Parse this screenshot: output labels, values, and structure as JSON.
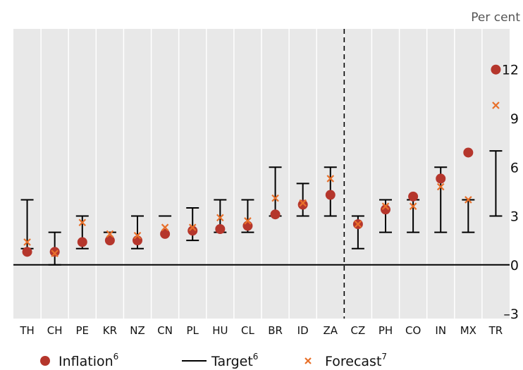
{
  "chart_data": {
    "type": "scatter",
    "unit_label": "Per cent",
    "categories": [
      "TH",
      "CH",
      "PE",
      "KR",
      "NZ",
      "CN",
      "PL",
      "HU",
      "CL",
      "BR",
      "ID",
      "ZA",
      "CZ",
      "PH",
      "CO",
      "IN",
      "MX",
      "TR"
    ],
    "series": [
      {
        "name": "Inflation",
        "footnote": "6",
        "marker": "circle",
        "color": "#b5362c",
        "values": [
          0.8,
          0.8,
          1.4,
          1.5,
          1.5,
          1.9,
          2.1,
          2.2,
          2.4,
          3.1,
          3.7,
          4.3,
          2.5,
          3.4,
          4.2,
          5.3,
          6.9,
          12.0
        ]
      },
      {
        "name": "Target",
        "footnote": "6",
        "marker": "range",
        "color": "#000000",
        "ranges": [
          [
            1,
            4
          ],
          [
            0,
            2
          ],
          [
            1,
            3
          ],
          [
            2,
            2
          ],
          [
            1,
            3
          ],
          [
            3,
            3
          ],
          [
            1.5,
            3.5
          ],
          [
            2,
            4
          ],
          [
            2,
            4
          ],
          [
            3,
            6
          ],
          [
            3,
            5
          ],
          [
            3,
            6
          ],
          [
            1,
            3
          ],
          [
            2,
            4
          ],
          [
            2,
            4
          ],
          [
            2,
            6
          ],
          [
            2,
            4
          ],
          [
            3,
            7
          ]
        ]
      },
      {
        "name": "Forecast",
        "footnote": "7",
        "marker": "x",
        "color": "#e8702a",
        "values": [
          1.4,
          0.7,
          2.6,
          1.9,
          1.8,
          2.3,
          2.3,
          2.9,
          2.7,
          4.1,
          3.8,
          5.3,
          2.5,
          3.6,
          3.6,
          4.8,
          4.0,
          9.8
        ]
      }
    ],
    "yticks": [
      -3,
      0,
      3,
      6,
      9,
      12
    ],
    "ytick_labels": [
      "–3",
      "0",
      "3",
      "6",
      "9",
      "12"
    ],
    "ylim": [
      -3.3,
      14.5
    ],
    "divider_after": "ZA",
    "grid": "vertical",
    "background_color": "#e8e8e8",
    "legend": "bottom"
  }
}
